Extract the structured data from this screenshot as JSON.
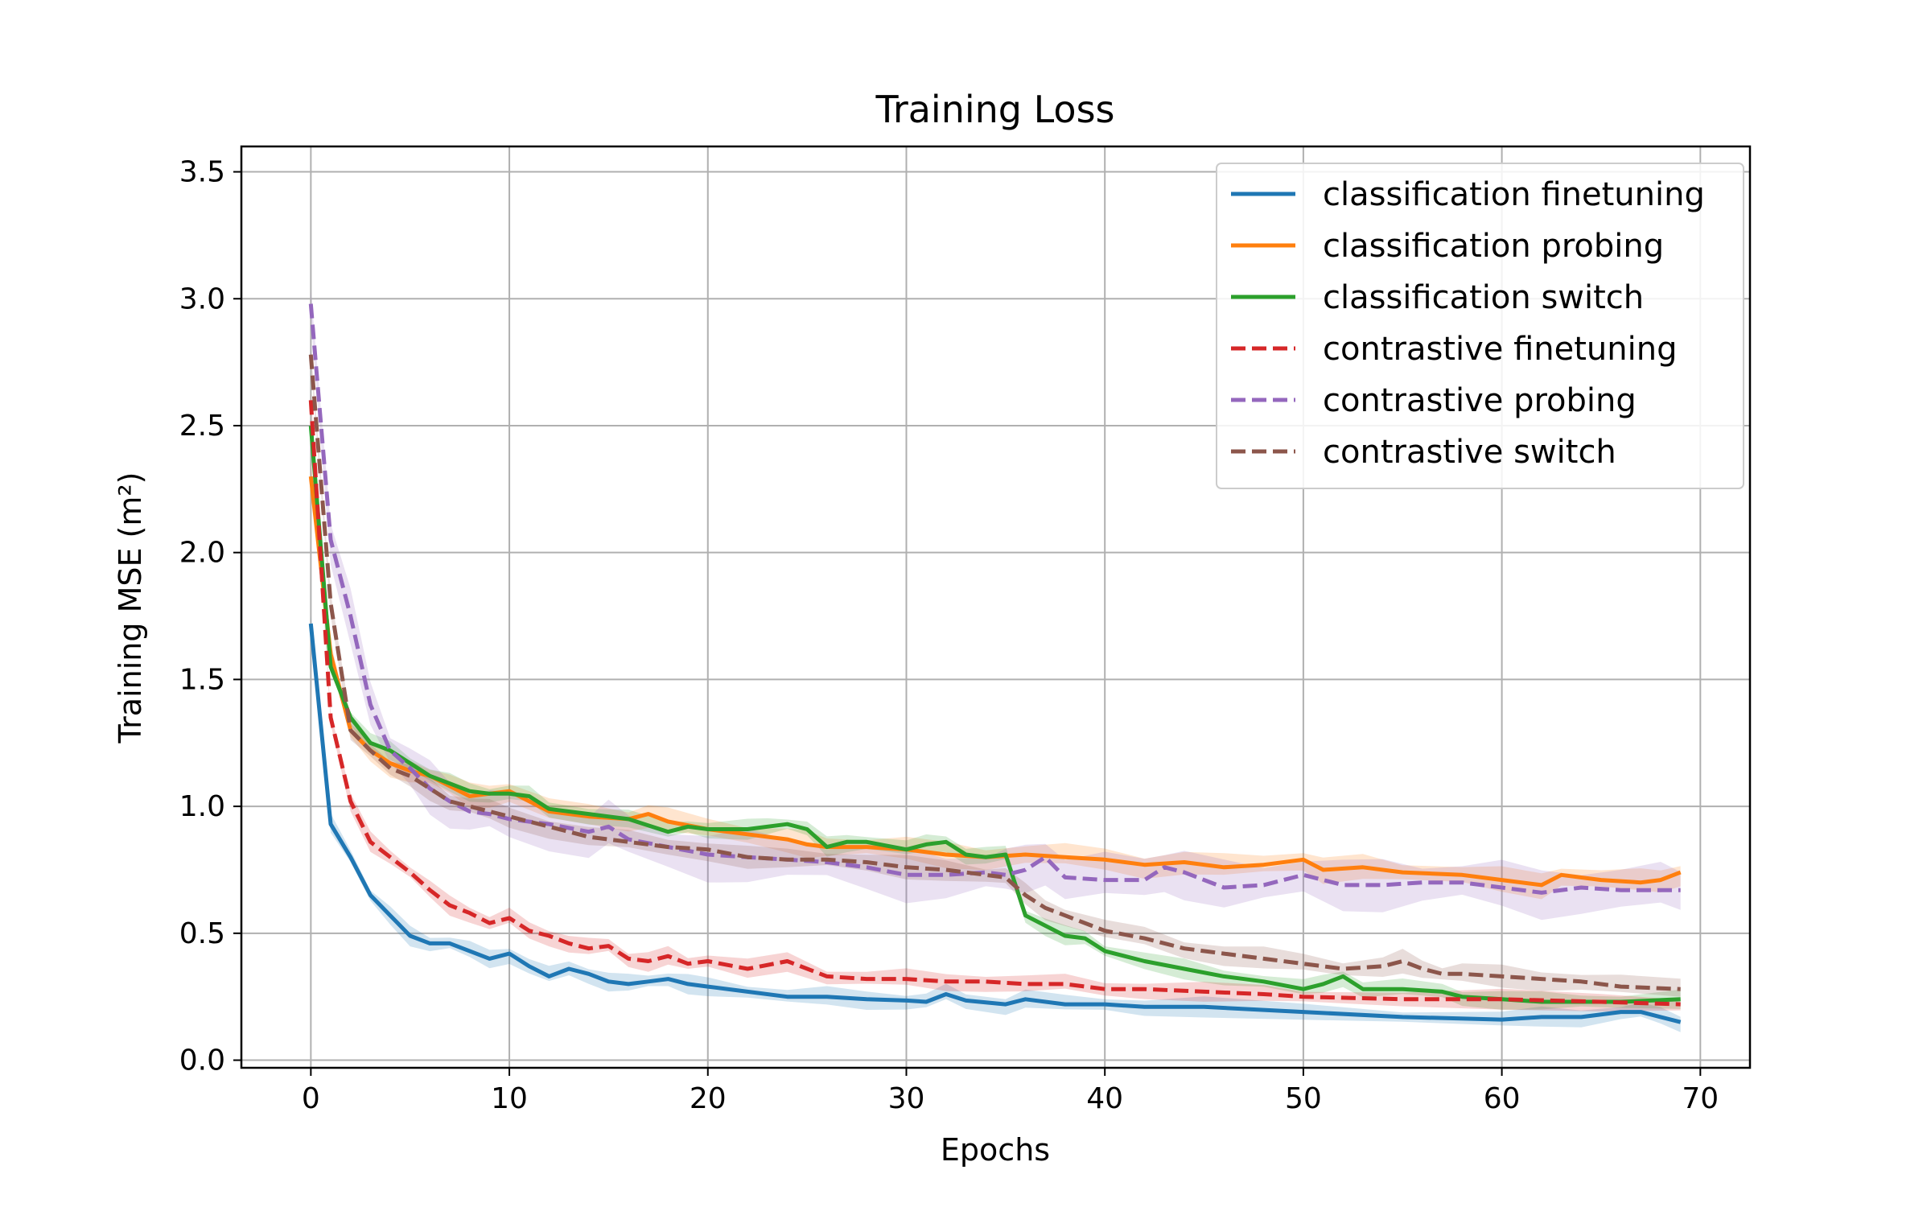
{
  "chart_data": {
    "type": "line",
    "title": "Training Loss",
    "xlabel": "Epochs",
    "ylabel": "Training MSE (m²)",
    "xlim": [
      -3.5,
      72.5
    ],
    "ylim": [
      -0.03,
      3.6
    ],
    "xticks": [
      0,
      10,
      20,
      30,
      40,
      50,
      60,
      70
    ],
    "yticks": [
      0.0,
      0.5,
      1.0,
      1.5,
      2.0,
      2.5,
      3.0,
      3.5
    ],
    "xtick_labels": [
      "0",
      "10",
      "20",
      "30",
      "40",
      "50",
      "60",
      "70"
    ],
    "ytick_labels": [
      "0.0",
      "0.5",
      "1.0",
      "1.5",
      "2.0",
      "2.5",
      "3.0",
      "3.5"
    ],
    "grid": true,
    "legend_position": "top-right",
    "shaded_band": "variation across runs",
    "series": [
      {
        "name": "classification finetuning",
        "color": "#1f77b4",
        "linestyle": "solid",
        "band_width": 0.03,
        "x": [
          0,
          1,
          2,
          3,
          4,
          5,
          6,
          7,
          8,
          9,
          10,
          11,
          12,
          13,
          14,
          15,
          16,
          17,
          18,
          19,
          20,
          22,
          24,
          26,
          28,
          30,
          31,
          32,
          33,
          35,
          36,
          38,
          40,
          42,
          45,
          50,
          55,
          60,
          62,
          64,
          66,
          67,
          68,
          69
        ],
        "y": [
          1.72,
          0.93,
          0.8,
          0.65,
          0.57,
          0.49,
          0.46,
          0.46,
          0.43,
          0.4,
          0.42,
          0.37,
          0.33,
          0.36,
          0.34,
          0.31,
          0.3,
          0.31,
          0.32,
          0.3,
          0.29,
          0.27,
          0.25,
          0.25,
          0.24,
          0.235,
          0.23,
          0.26,
          0.235,
          0.22,
          0.24,
          0.22,
          0.22,
          0.21,
          0.21,
          0.19,
          0.17,
          0.16,
          0.17,
          0.17,
          0.19,
          0.19,
          0.17,
          0.15
        ]
      },
      {
        "name": "classification probing",
        "color": "#ff7f0e",
        "linestyle": "solid",
        "band_width": 0.04,
        "x": [
          0,
          1,
          2,
          3,
          4,
          5,
          6,
          7,
          8,
          9,
          10,
          12,
          14,
          16,
          17,
          18,
          20,
          22,
          24,
          25,
          26,
          28,
          30,
          32,
          34,
          36,
          38,
          40,
          42,
          44,
          46,
          48,
          50,
          51,
          53,
          55,
          58,
          60,
          62,
          63,
          65,
          67,
          68,
          69
        ],
        "y": [
          2.3,
          1.6,
          1.3,
          1.22,
          1.17,
          1.14,
          1.12,
          1.08,
          1.04,
          1.05,
          1.06,
          0.98,
          0.96,
          0.95,
          0.97,
          0.94,
          0.91,
          0.89,
          0.87,
          0.85,
          0.84,
          0.84,
          0.83,
          0.81,
          0.8,
          0.81,
          0.8,
          0.79,
          0.77,
          0.78,
          0.76,
          0.77,
          0.79,
          0.75,
          0.76,
          0.74,
          0.73,
          0.71,
          0.69,
          0.73,
          0.71,
          0.7,
          0.71,
          0.74
        ]
      },
      {
        "name": "classification switch",
        "color": "#2ca02c",
        "linestyle": "solid",
        "band_width": 0.03,
        "x": [
          0,
          1,
          2,
          3,
          4,
          5,
          6,
          7,
          8,
          9,
          10,
          11,
          12,
          14,
          16,
          18,
          19,
          20,
          22,
          23,
          24,
          25,
          26,
          27,
          28,
          30,
          31,
          32,
          33,
          34,
          35,
          36,
          37,
          38,
          39,
          40,
          42,
          44,
          46,
          48,
          50,
          51,
          52,
          53,
          55,
          57,
          58,
          60,
          62,
          64,
          66,
          69
        ],
        "y": [
          2.5,
          1.55,
          1.35,
          1.25,
          1.22,
          1.17,
          1.12,
          1.09,
          1.06,
          1.05,
          1.05,
          1.04,
          0.99,
          0.97,
          0.95,
          0.9,
          0.92,
          0.91,
          0.91,
          0.92,
          0.93,
          0.91,
          0.84,
          0.86,
          0.86,
          0.83,
          0.85,
          0.86,
          0.81,
          0.8,
          0.81,
          0.57,
          0.53,
          0.49,
          0.48,
          0.43,
          0.39,
          0.36,
          0.33,
          0.31,
          0.28,
          0.3,
          0.33,
          0.28,
          0.28,
          0.27,
          0.25,
          0.24,
          0.23,
          0.23,
          0.23,
          0.24
        ]
      },
      {
        "name": "contrastive finetuning",
        "color": "#d62728",
        "linestyle": "dashed",
        "band_width": 0.03,
        "x": [
          0,
          1,
          2,
          3,
          4,
          5,
          6,
          7,
          8,
          9,
          10,
          11,
          12,
          13,
          14,
          15,
          16,
          17,
          18,
          19,
          20,
          22,
          24,
          26,
          28,
          30,
          32,
          34,
          36,
          38,
          40,
          42,
          45,
          48,
          50,
          55,
          60,
          65,
          69
        ],
        "y": [
          2.6,
          1.35,
          1.02,
          0.86,
          0.8,
          0.74,
          0.67,
          0.61,
          0.58,
          0.54,
          0.56,
          0.51,
          0.49,
          0.46,
          0.44,
          0.45,
          0.4,
          0.39,
          0.41,
          0.38,
          0.39,
          0.36,
          0.39,
          0.33,
          0.32,
          0.32,
          0.31,
          0.31,
          0.3,
          0.3,
          0.28,
          0.28,
          0.27,
          0.26,
          0.25,
          0.24,
          0.24,
          0.23,
          0.22
        ]
      },
      {
        "name": "contrastive probing",
        "color": "#9467bd",
        "linestyle": "dashed",
        "band_width": 0.08,
        "x": [
          0,
          1,
          2,
          3,
          4,
          5,
          6,
          7,
          8,
          9,
          10,
          12,
          14,
          15,
          16,
          18,
          20,
          22,
          24,
          26,
          28,
          30,
          32,
          34,
          35,
          36,
          37,
          38,
          40,
          42,
          43,
          44,
          46,
          48,
          50,
          52,
          54,
          56,
          58,
          60,
          62,
          64,
          66,
          68,
          69
        ],
        "y": [
          2.98,
          2.05,
          1.75,
          1.4,
          1.22,
          1.15,
          1.07,
          1.02,
          0.98,
          0.97,
          0.95,
          0.93,
          0.9,
          0.92,
          0.87,
          0.84,
          0.81,
          0.8,
          0.79,
          0.78,
          0.76,
          0.73,
          0.73,
          0.74,
          0.73,
          0.75,
          0.8,
          0.72,
          0.71,
          0.71,
          0.76,
          0.74,
          0.68,
          0.69,
          0.73,
          0.69,
          0.69,
          0.7,
          0.7,
          0.68,
          0.66,
          0.68,
          0.67,
          0.67,
          0.67
        ]
      },
      {
        "name": "contrastive switch",
        "color": "#8c564b",
        "linestyle": "dashed",
        "band_width": 0.035,
        "x": [
          0,
          1,
          2,
          3,
          4,
          5,
          6,
          7,
          8,
          9,
          10,
          12,
          14,
          16,
          18,
          20,
          22,
          24,
          26,
          28,
          30,
          32,
          34,
          35,
          36,
          37,
          38,
          40,
          42,
          44,
          46,
          48,
          50,
          52,
          54,
          55,
          56,
          57,
          58,
          60,
          62,
          64,
          66,
          69
        ],
        "y": [
          2.78,
          1.8,
          1.3,
          1.22,
          1.15,
          1.12,
          1.07,
          1.02,
          1.0,
          0.98,
          0.96,
          0.92,
          0.88,
          0.86,
          0.84,
          0.83,
          0.8,
          0.79,
          0.79,
          0.78,
          0.76,
          0.75,
          0.73,
          0.72,
          0.65,
          0.6,
          0.57,
          0.51,
          0.48,
          0.44,
          0.42,
          0.4,
          0.38,
          0.36,
          0.37,
          0.39,
          0.36,
          0.34,
          0.34,
          0.33,
          0.32,
          0.31,
          0.29,
          0.28
        ]
      }
    ]
  }
}
